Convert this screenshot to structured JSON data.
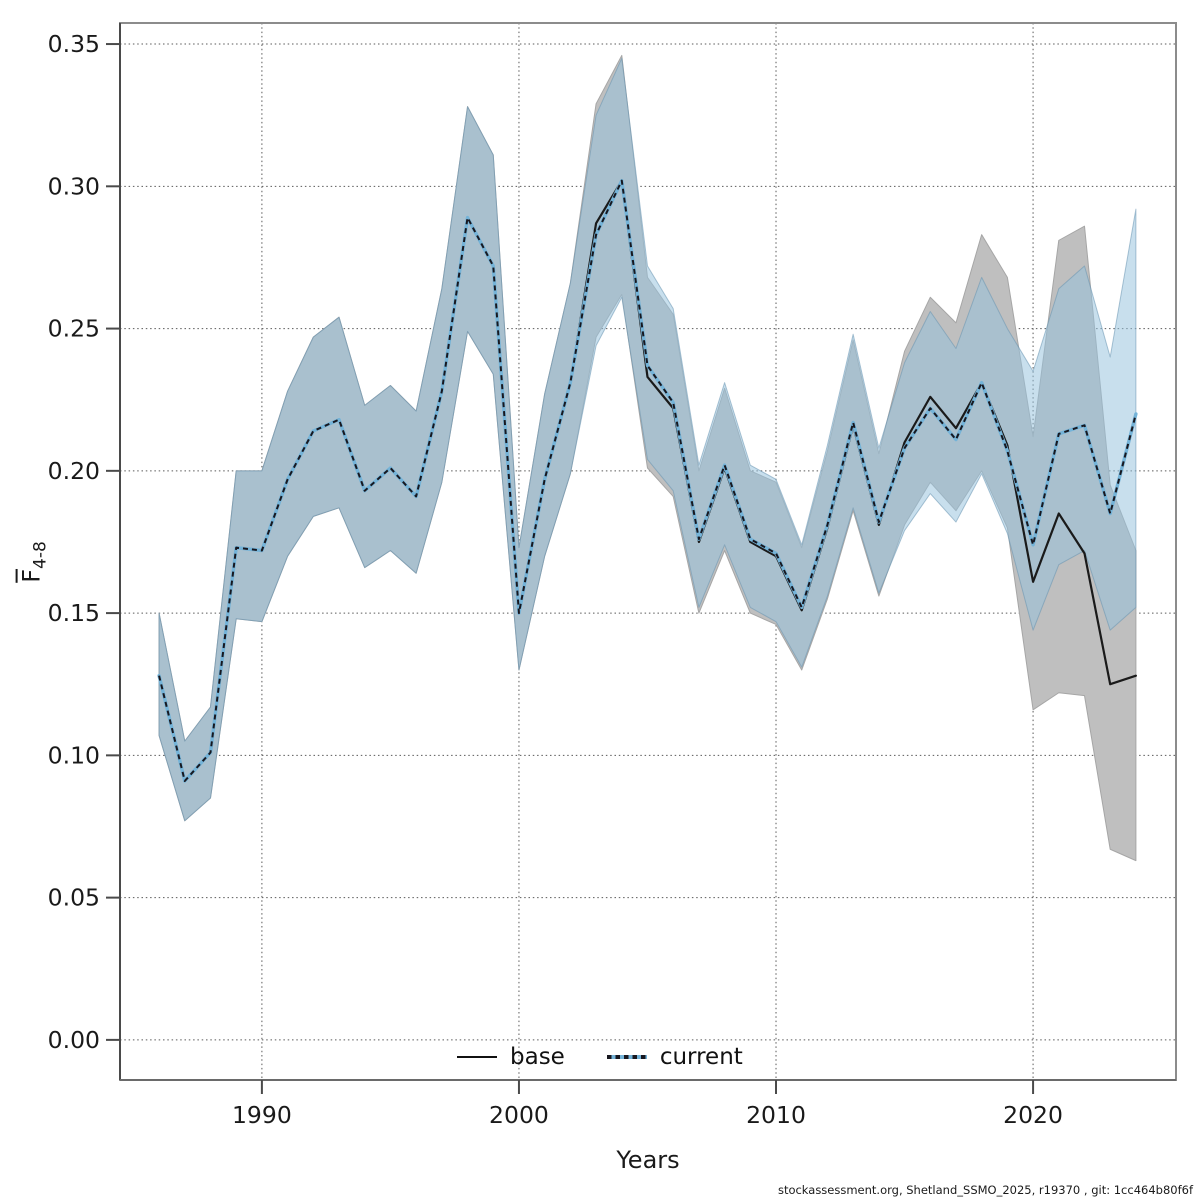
{
  "footer": "stockassessment.org, Shetland_SSMO_2025, r19370 , git: 1cc464b80f6f",
  "chart_data": {
    "type": "line",
    "title": "",
    "xlabel": "Years",
    "ylabel_main": "F",
    "ylabel_sub": "4-8",
    "grid": true,
    "legend_position": "bottom-center-inside",
    "xlim": [
      1984.48,
      2025.56
    ],
    "ylim": [
      -0.0141,
      0.3574
    ],
    "xticks": [
      {
        "value": 1990,
        "label": "1990"
      },
      {
        "value": 2000,
        "label": "2000"
      },
      {
        "value": 2010,
        "label": "2010"
      },
      {
        "value": 2020,
        "label": "2020"
      }
    ],
    "yticks": [
      {
        "value": 0.0,
        "label": "0.00"
      },
      {
        "value": 0.05,
        "label": "0.05"
      },
      {
        "value": 0.1,
        "label": "0.10"
      },
      {
        "value": 0.15,
        "label": "0.15"
      },
      {
        "value": 0.2,
        "label": "0.20"
      },
      {
        "value": 0.25,
        "label": "0.25"
      },
      {
        "value": 0.3,
        "label": "0.30"
      },
      {
        "value": 0.35,
        "label": "0.35"
      }
    ],
    "legend": [
      {
        "label": "base"
      },
      {
        "label": "current"
      }
    ],
    "x": [
      1986,
      1987,
      1988,
      1989,
      1990,
      1991,
      1992,
      1993,
      1994,
      1995,
      1996,
      1997,
      1998,
      1999,
      2000,
      2001,
      2002,
      2003,
      2004,
      2005,
      2006,
      2007,
      2008,
      2009,
      2010,
      2011,
      2012,
      2013,
      2014,
      2015,
      2016,
      2017,
      2018,
      2019,
      2020,
      2021,
      2022,
      2023,
      2024
    ],
    "series": [
      {
        "name": "base",
        "line_style": "solid",
        "line_color": "#1a1a1a",
        "band_color": "#bfbfbf",
        "band_edge_color": "#a6a6a6",
        "values": [
          0.128,
          0.091,
          0.101,
          0.173,
          0.172,
          0.197,
          0.214,
          0.218,
          0.193,
          0.201,
          0.191,
          0.228,
          0.289,
          0.272,
          0.15,
          0.197,
          0.231,
          0.287,
          0.302,
          0.233,
          0.222,
          0.175,
          0.201,
          0.175,
          0.17,
          0.151,
          0.18,
          0.216,
          0.181,
          0.21,
          0.226,
          0.215,
          0.231,
          0.209,
          0.161,
          0.185,
          0.171,
          0.125,
          0.128
        ],
        "ci_lo": [
          0.107,
          0.077,
          0.085,
          0.148,
          0.147,
          0.17,
          0.184,
          0.187,
          0.166,
          0.172,
          0.164,
          0.196,
          0.249,
          0.234,
          0.13,
          0.17,
          0.199,
          0.247,
          0.262,
          0.201,
          0.191,
          0.15,
          0.172,
          0.15,
          0.146,
          0.13,
          0.155,
          0.186,
          0.156,
          0.181,
          0.196,
          0.186,
          0.2,
          0.18,
          0.116,
          0.122,
          0.121,
          0.067,
          0.063
        ],
        "ci_hi": [
          0.15,
          0.105,
          0.117,
          0.2,
          0.2,
          0.228,
          0.247,
          0.254,
          0.223,
          0.23,
          0.221,
          0.264,
          0.328,
          0.311,
          0.173,
          0.227,
          0.266,
          0.329,
          0.346,
          0.268,
          0.255,
          0.2,
          0.229,
          0.2,
          0.196,
          0.173,
          0.207,
          0.246,
          0.206,
          0.242,
          0.261,
          0.252,
          0.283,
          0.268,
          0.212,
          0.281,
          0.286,
          0.195,
          0.172
        ]
      },
      {
        "name": "current",
        "line_style": "dashed",
        "line_color": "#74b3d8",
        "dash_color": "#17171f",
        "band_color": "rgba(149,194,220,0.52)",
        "band_edge_color": "rgba(104,148,176,0.55)",
        "values": [
          0.128,
          0.091,
          0.101,
          0.173,
          0.172,
          0.197,
          0.214,
          0.218,
          0.193,
          0.201,
          0.191,
          0.228,
          0.289,
          0.272,
          0.15,
          0.197,
          0.231,
          0.283,
          0.302,
          0.237,
          0.224,
          0.176,
          0.202,
          0.176,
          0.171,
          0.152,
          0.181,
          0.217,
          0.182,
          0.208,
          0.222,
          0.211,
          0.231,
          0.207,
          0.174,
          0.213,
          0.216,
          0.185,
          0.22
        ],
        "ci_lo": [
          0.107,
          0.077,
          0.085,
          0.148,
          0.147,
          0.17,
          0.184,
          0.187,
          0.166,
          0.172,
          0.164,
          0.196,
          0.249,
          0.234,
          0.13,
          0.17,
          0.199,
          0.244,
          0.261,
          0.204,
          0.193,
          0.152,
          0.174,
          0.152,
          0.147,
          0.131,
          0.156,
          0.187,
          0.157,
          0.179,
          0.192,
          0.182,
          0.199,
          0.178,
          0.144,
          0.167,
          0.172,
          0.144,
          0.152
        ],
        "ci_hi": [
          0.15,
          0.105,
          0.117,
          0.2,
          0.2,
          0.228,
          0.247,
          0.254,
          0.223,
          0.23,
          0.221,
          0.264,
          0.328,
          0.311,
          0.173,
          0.227,
          0.266,
          0.325,
          0.345,
          0.272,
          0.257,
          0.202,
          0.231,
          0.202,
          0.197,
          0.174,
          0.209,
          0.248,
          0.208,
          0.238,
          0.256,
          0.243,
          0.268,
          0.25,
          0.235,
          0.264,
          0.272,
          0.24,
          0.292
        ]
      }
    ],
    "colors": {
      "grid": "#5a5a5a",
      "box": "#8c8c8c",
      "axis": "#4a4a4a",
      "text": "#1a1a1a",
      "background": "#ffffff"
    }
  }
}
